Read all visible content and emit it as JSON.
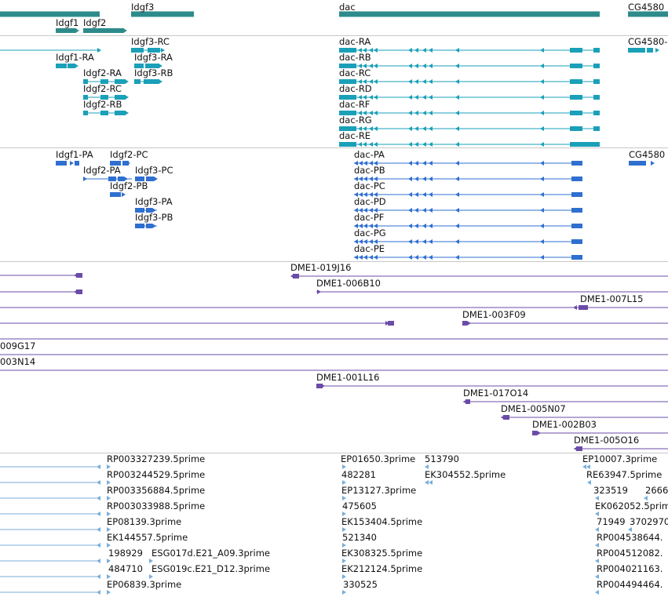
{
  "gene_track": {
    "labels": [
      "Idgf3",
      "dac",
      "CG4580",
      "Idgf1",
      "Idgf2"
    ]
  },
  "transcript_track": {
    "labels": [
      "Idgf3-RC",
      "Idgf1-RA",
      "Idgf3-RA",
      "Idgf2-RA",
      "Idgf3-RB",
      "Idgf2-RC",
      "Idgf2-RB",
      "dac-RA",
      "dac-RB",
      "dac-RC",
      "dac-RD",
      "dac-RF",
      "dac-RG",
      "dac-RE",
      "CG4580-"
    ]
  },
  "protein_track": {
    "labels": [
      "Idgf1-PA",
      "Idgf2-PC",
      "Idgf2-PA",
      "Idgf3-PC",
      "Idgf2-PB",
      "Idgf3-PA",
      "Idgf3-PB",
      "dac-PA",
      "dac-PB",
      "dac-PC",
      "dac-PD",
      "dac-PF",
      "dac-PG",
      "dac-PE",
      "CG4580"
    ]
  },
  "clone_track": {
    "labels": [
      "DME1-019J16",
      "DME1-006B10",
      "DME1-007L15",
      "DME1-003F09",
      "009G17",
      "003N14",
      "DME1-001L16",
      "DME1-017O14",
      "DME1-005N07",
      "DME1-002B03",
      "DME1-005O16"
    ]
  },
  "est_track": {
    "labels": [
      "RP003327239.5prime",
      "RP003244529.5prime",
      "RP003356884.5prime",
      "RP003033988.5prime",
      "EP08139.3prime",
      "EK144557.5prime",
      "198929",
      "ESG017d.E21_A09.3prime",
      "484710",
      "ESG019c.E21_D12.3prime",
      "EP06839.3prime",
      "EP01650.3prime",
      "513790",
      "482281",
      "EK304552.5prime",
      "EP13127.3prime",
      "475605",
      "EK153404.5prime",
      "521340",
      "EK308325.5prime",
      "EK212124.5prime",
      "330525",
      "EP10007.3prime",
      "RE63947.5prime",
      "323519",
      "2666",
      "EK062052.5prime",
      "71949",
      "3702970",
      "RP004538644.",
      "RP004512082.",
      "RP004021163.",
      "RP004494464."
    ]
  },
  "colors": {
    "gene": "#2e8b8b",
    "transcript": "#1aa0b8",
    "protein": "#2f6fd0",
    "clone": "#6a4ca8",
    "est": "#7aaed8",
    "separator": "#c8c8c8"
  }
}
